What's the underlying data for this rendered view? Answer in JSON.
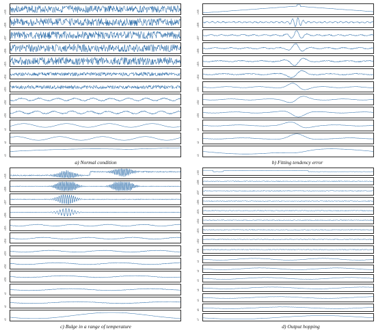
{
  "panels": [
    {
      "id": "a",
      "caption": "a) Normal condition",
      "labels": [
        "cA8",
        "cD8",
        "cD7",
        "cD6",
        "cD5",
        "cD4",
        "cD3",
        "cD2",
        "cD1",
        "s1",
        "s2",
        "s3"
      ]
    },
    {
      "id": "b",
      "caption": "b) Fitting tendency error",
      "labels": [
        "cA8",
        "cD8",
        "cD7",
        "cD6",
        "cD5",
        "cD4",
        "cD3",
        "cD2",
        "cD1",
        "s1",
        "s2",
        "s3"
      ]
    },
    {
      "id": "c",
      "caption": "c) Bulge in a range of temperature",
      "labels": [
        "cA8",
        "cD8",
        "cD7",
        "cD6",
        "cD5",
        "cD4",
        "cD3",
        "cD2",
        "cD1",
        "s1",
        "s2",
        "s3"
      ]
    },
    {
      "id": "d",
      "caption": "d) Output hopping",
      "labels": [
        "cA8",
        "cD8",
        "cD7",
        "cD6",
        "cD5",
        "cD4",
        "cD3",
        "cD2",
        "cD1",
        "s1",
        "s2",
        "s3",
        "s4",
        "s5",
        "s6",
        "s7"
      ]
    }
  ],
  "colors": {
    "signal": "#2f6fab",
    "frame": "#2a2a2a"
  }
}
